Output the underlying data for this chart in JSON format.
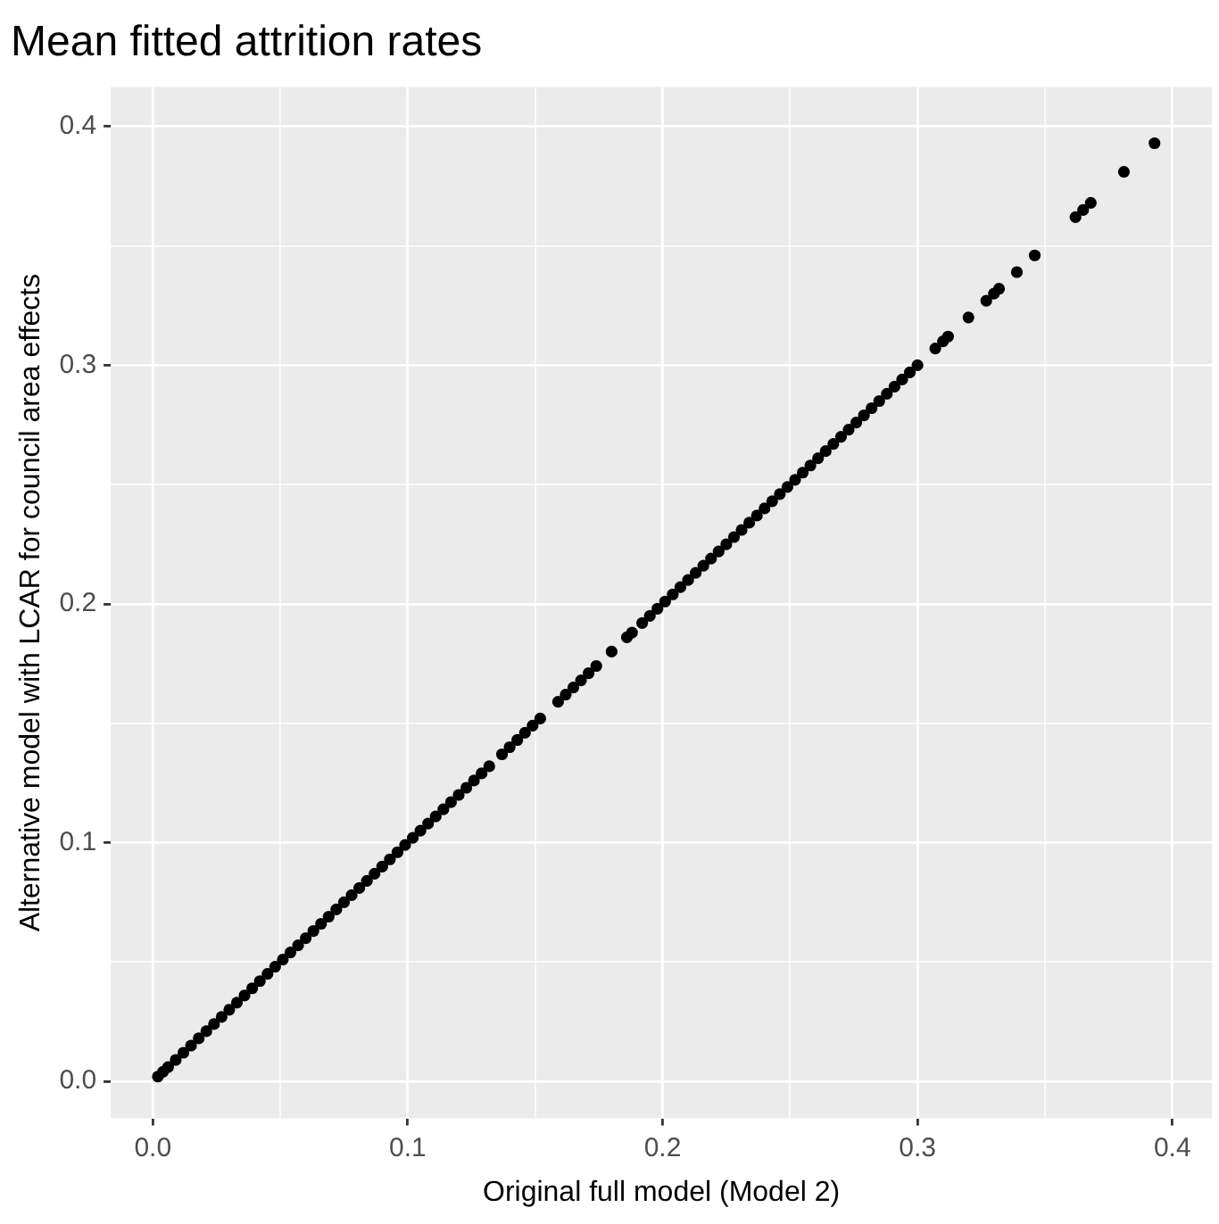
{
  "chart_data": {
    "type": "scatter",
    "title": "Mean fitted attrition rates",
    "xlabel": "Original full model (Model 2)",
    "ylabel": "Alternative model with LCAR for council area effects",
    "color": "#000000",
    "marker": "circle",
    "grid": true,
    "xlim": [
      -0.0165,
      0.4155
    ],
    "ylim": [
      -0.0155,
      0.4165
    ],
    "xticks": [
      {
        "value": 0,
        "label": "0.0"
      },
      {
        "value": 0.05,
        "label": null
      },
      0.1,
      {
        "value": 0.15,
        "label": null
      },
      0.2,
      {
        "value": 0.25,
        "label": null
      },
      0.3,
      {
        "value": 0.35,
        "label": null
      },
      0.4
    ],
    "yticks": [
      {
        "value": 0,
        "label": "0.0"
      },
      {
        "value": 0.05,
        "label": null
      },
      0.1,
      {
        "value": 0.15,
        "label": null
      },
      0.2,
      {
        "value": 0.25,
        "label": null
      },
      0.3,
      {
        "value": 0.35,
        "label": null
      },
      0.4
    ],
    "x": [
      0.002,
      0.004,
      0.006,
      0.009,
      0.012,
      0.015,
      0.018,
      0.021,
      0.024,
      0.027,
      0.03,
      0.033,
      0.036,
      0.039,
      0.042,
      0.045,
      0.048,
      0.051,
      0.054,
      0.057,
      0.06,
      0.063,
      0.066,
      0.069,
      0.072,
      0.075,
      0.078,
      0.081,
      0.084,
      0.087,
      0.09,
      0.093,
      0.096,
      0.099,
      0.102,
      0.105,
      0.108,
      0.111,
      0.114,
      0.117,
      0.12,
      0.123,
      0.126,
      0.129,
      0.132,
      0.137,
      0.14,
      0.143,
      0.146,
      0.149,
      0.152,
      0.159,
      0.162,
      0.165,
      0.168,
      0.171,
      0.174,
      0.18,
      0.186,
      0.188,
      0.192,
      0.195,
      0.198,
      0.201,
      0.204,
      0.207,
      0.21,
      0.213,
      0.216,
      0.219,
      0.222,
      0.225,
      0.228,
      0.231,
      0.234,
      0.237,
      0.24,
      0.243,
      0.246,
      0.249,
      0.252,
      0.255,
      0.258,
      0.261,
      0.264,
      0.267,
      0.27,
      0.273,
      0.276,
      0.279,
      0.282,
      0.285,
      0.288,
      0.291,
      0.294,
      0.297,
      0.3,
      0.307,
      0.31,
      0.312,
      0.32,
      0.327,
      0.33,
      0.332,
      0.339,
      0.346,
      0.362,
      0.365,
      0.368,
      0.381,
      0.393
    ],
    "values": [
      0.002,
      0.004,
      0.006,
      0.009,
      0.012,
      0.015,
      0.018,
      0.021,
      0.024,
      0.027,
      0.03,
      0.033,
      0.036,
      0.039,
      0.042,
      0.045,
      0.048,
      0.051,
      0.054,
      0.057,
      0.06,
      0.063,
      0.066,
      0.069,
      0.072,
      0.075,
      0.078,
      0.081,
      0.084,
      0.087,
      0.09,
      0.093,
      0.096,
      0.099,
      0.102,
      0.105,
      0.108,
      0.111,
      0.114,
      0.117,
      0.12,
      0.123,
      0.126,
      0.129,
      0.132,
      0.137,
      0.14,
      0.143,
      0.146,
      0.149,
      0.152,
      0.159,
      0.162,
      0.165,
      0.168,
      0.171,
      0.174,
      0.18,
      0.186,
      0.188,
      0.192,
      0.195,
      0.198,
      0.201,
      0.204,
      0.207,
      0.21,
      0.213,
      0.216,
      0.219,
      0.222,
      0.225,
      0.228,
      0.231,
      0.234,
      0.237,
      0.24,
      0.243,
      0.246,
      0.249,
      0.252,
      0.255,
      0.258,
      0.261,
      0.264,
      0.267,
      0.27,
      0.273,
      0.276,
      0.279,
      0.282,
      0.285,
      0.288,
      0.291,
      0.294,
      0.297,
      0.3,
      0.307,
      0.31,
      0.312,
      0.32,
      0.327,
      0.33,
      0.332,
      0.339,
      0.346,
      0.362,
      0.365,
      0.368,
      0.381,
      0.393
    ]
  }
}
